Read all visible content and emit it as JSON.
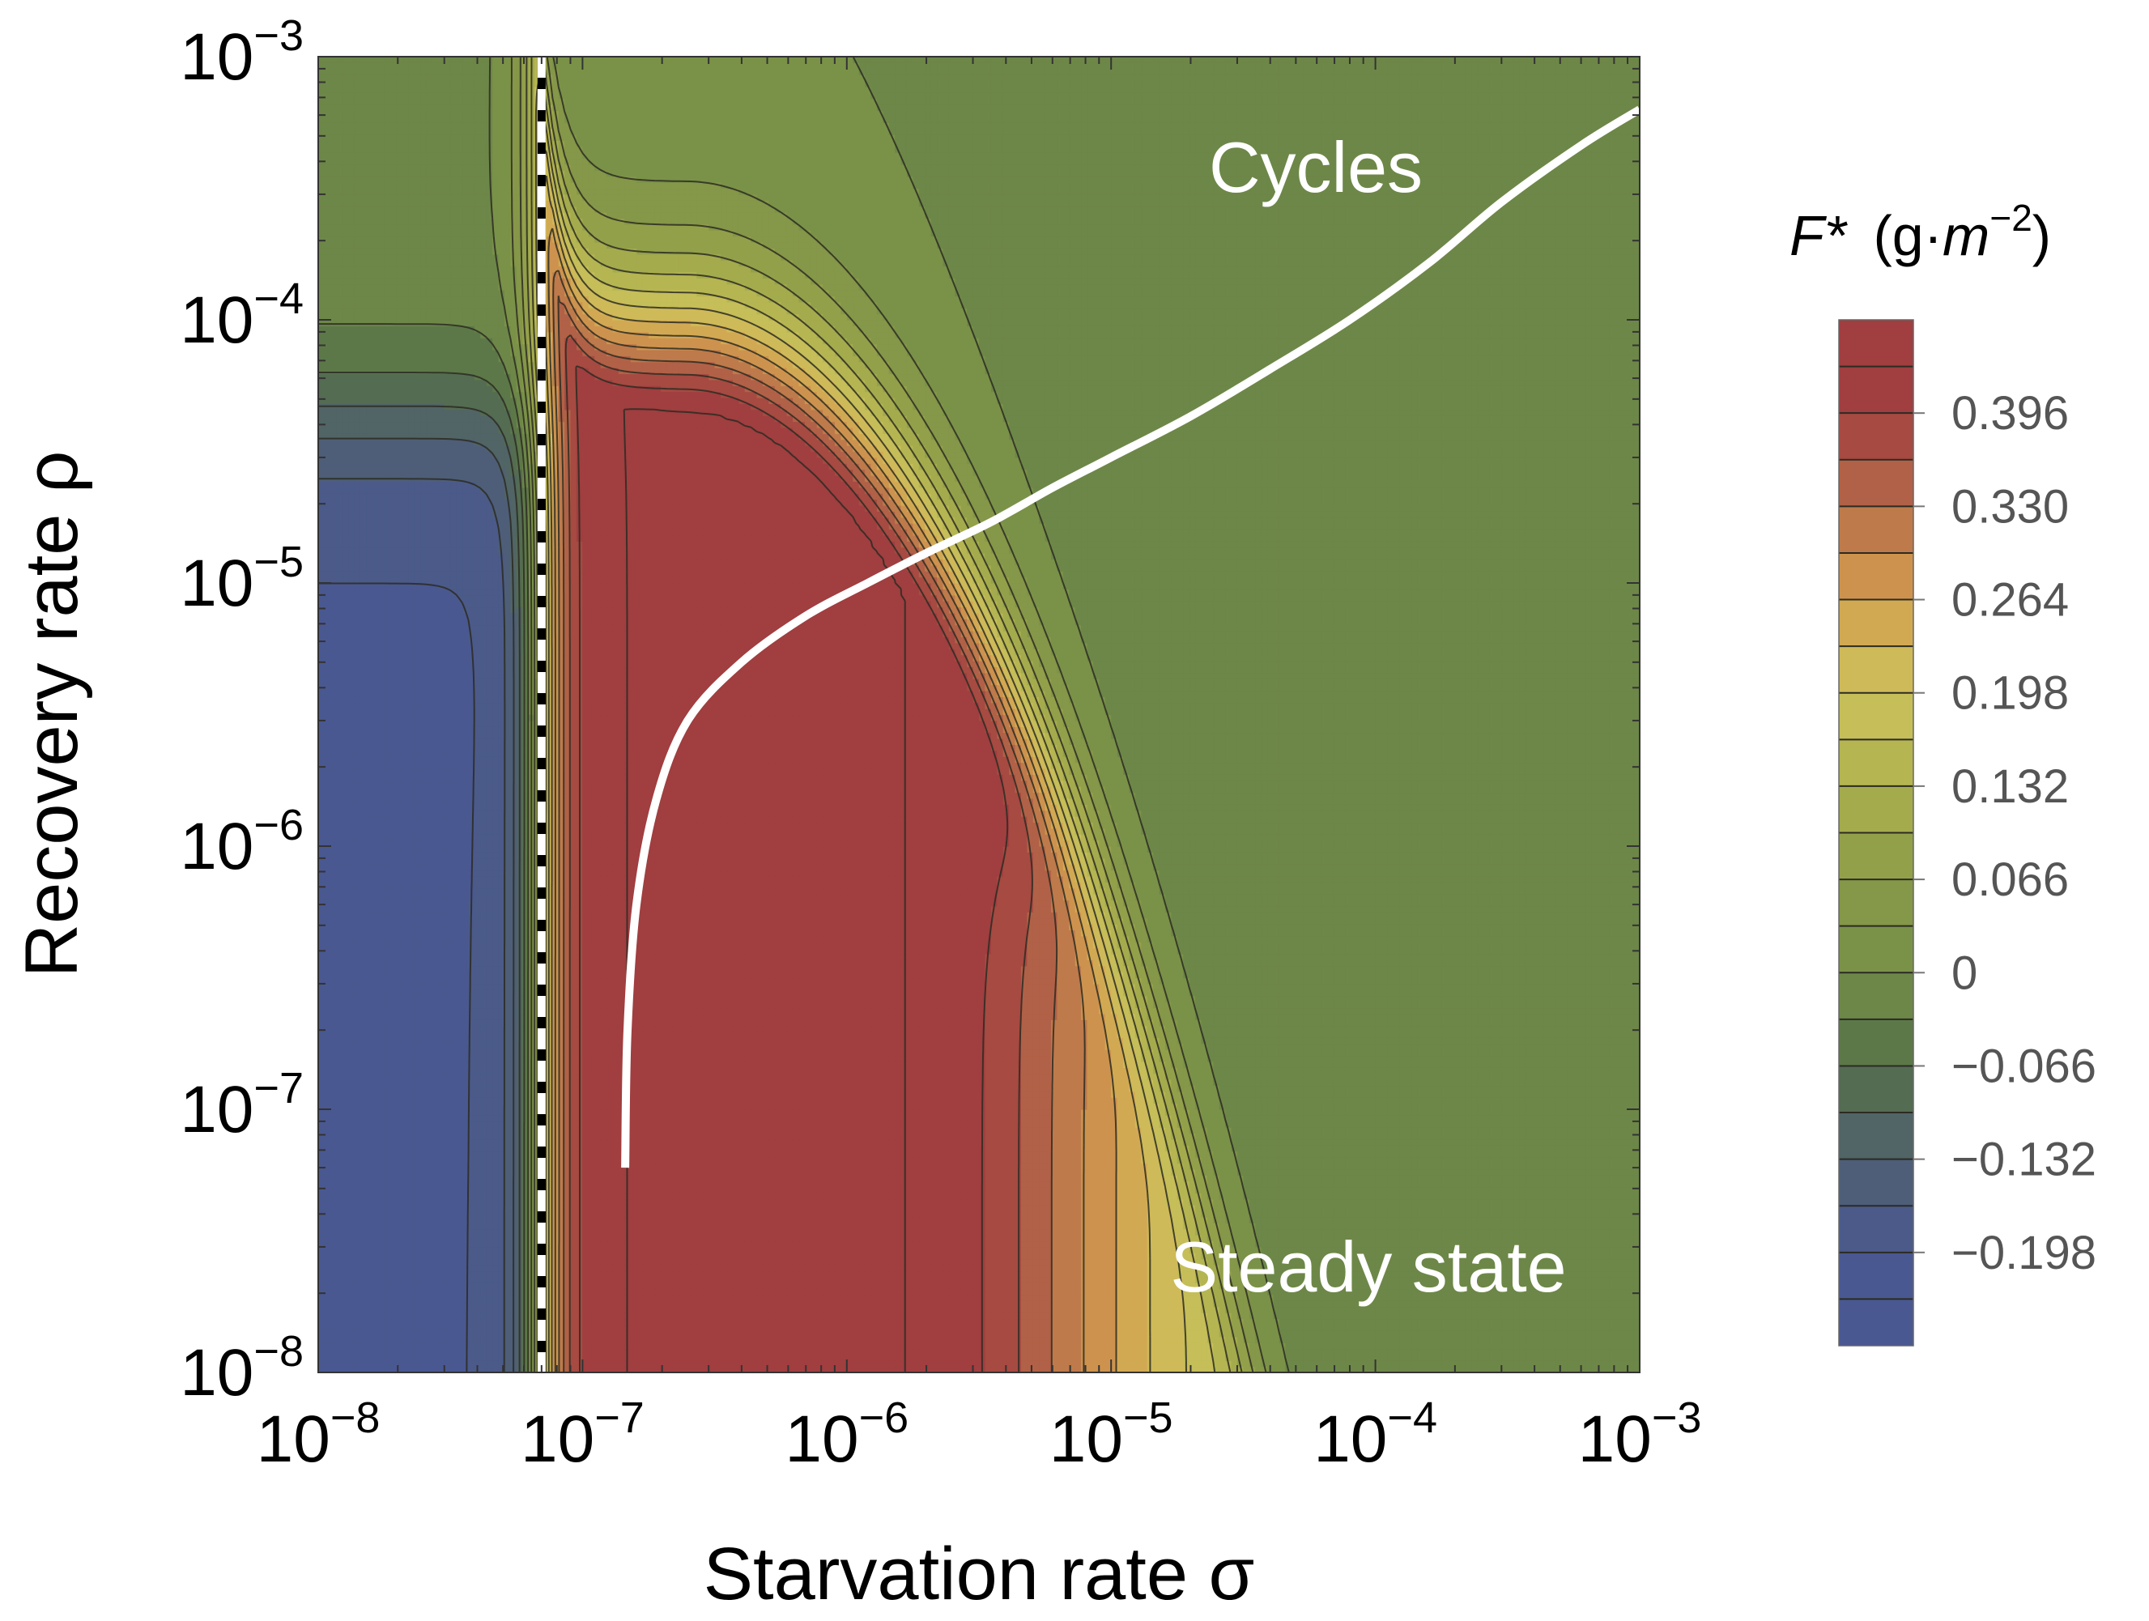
{
  "chart_data": {
    "type": "heatmap",
    "subtype": "filled-contour",
    "title": "",
    "xlabel": "Starvation rate σ",
    "ylabel": "Recovery rate ρ",
    "x_scale": "log",
    "y_scale": "log",
    "xlim": [
      1e-08,
      0.001
    ],
    "ylim": [
      1e-08,
      0.001
    ],
    "x_ticks": [
      {
        "base": "10",
        "exp": "−8"
      },
      {
        "base": "10",
        "exp": "−7"
      },
      {
        "base": "10",
        "exp": "−6"
      },
      {
        "base": "10",
        "exp": "−5"
      },
      {
        "base": "10",
        "exp": "−4"
      },
      {
        "base": "10",
        "exp": "−3"
      }
    ],
    "y_ticks": [
      {
        "base": "10",
        "exp": "−8"
      },
      {
        "base": "10",
        "exp": "−7"
      },
      {
        "base": "10",
        "exp": "−6"
      },
      {
        "base": "10",
        "exp": "−5"
      },
      {
        "base": "10",
        "exp": "−4"
      },
      {
        "base": "10",
        "exp": "−3"
      }
    ],
    "colorbar": {
      "title_var": "F*",
      "title_unit_open": "(g·",
      "title_unit_m": "m",
      "title_unit_exp": "−2",
      "title_unit_close": ")",
      "min": -0.264,
      "max": 0.462,
      "step": 0.033,
      "labels": [
        "0.396",
        "0.330",
        "0.264",
        "0.198",
        "0.132",
        "0.066",
        "0",
        "−0.066",
        "−0.132",
        "−0.198"
      ],
      "label_values": [
        0.396,
        0.33,
        0.264,
        0.198,
        0.132,
        0.066,
        0,
        -0.066,
        -0.132,
        -0.198
      ],
      "colors": {
        "low": "#4a5891",
        "neutral": "#758f48",
        "yellow": "#cdc35c",
        "orange": "#d4a050",
        "high": "#a03e40"
      }
    },
    "regions": [
      {
        "name": "low-sigma negative region",
        "sigma_max": 7e-08,
        "value": -0.2
      },
      {
        "name": "high plateau",
        "value": 0.43
      }
    ],
    "boundaries": {
      "vertical_dashed_sigma": 7e-08,
      "cycle_curve": [
        [
          1.45e-07,
          6e-08
        ],
        [
          1.48e-07,
          2e-07
        ],
        [
          1.6e-07,
          6e-07
        ],
        [
          1.9e-07,
          1.5e-06
        ],
        [
          2.5e-07,
          3e-06
        ],
        [
          4e-07,
          5e-06
        ],
        [
          7e-07,
          7.5e-06
        ],
        [
          1.2e-06,
          1e-05
        ],
        [
          2e-06,
          1.3e-05
        ],
        [
          3.5e-06,
          1.7e-05
        ],
        [
          6e-06,
          2.3e-05
        ],
        [
          1e-05,
          3e-05
        ],
        [
          2e-05,
          4.3e-05
        ],
        [
          4e-05,
          6.5e-05
        ],
        [
          8e-05,
          0.0001
        ],
        [
          0.00016,
          0.000165
        ],
        [
          0.0003,
          0.00028
        ],
        [
          0.0006,
          0.00046
        ],
        [
          0.001,
          0.00063
        ]
      ]
    },
    "annotations": [
      "Cycles",
      "Steady state"
    ],
    "grid": false,
    "legend": "colorbar at right"
  }
}
